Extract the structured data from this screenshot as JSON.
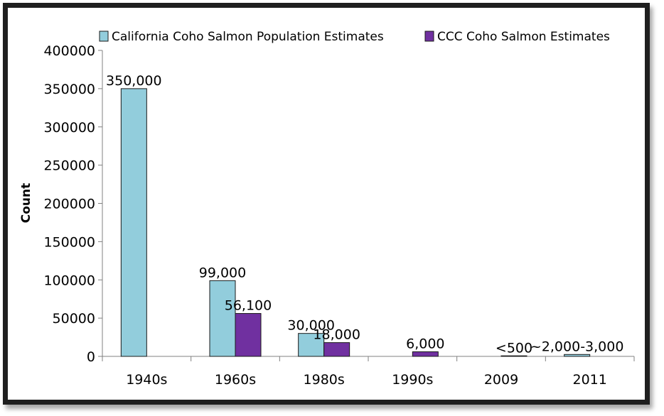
{
  "chart_data": {
    "type": "bar",
    "title": "",
    "xlabel": "",
    "ylabel": "Count",
    "ylim": [
      0,
      400000
    ],
    "yticks": [
      0,
      50000,
      100000,
      150000,
      200000,
      250000,
      300000,
      350000,
      400000
    ],
    "ytick_labels": [
      "0",
      "50000",
      "100000",
      "150000",
      "200000",
      "250000",
      "300000",
      "350000",
      "400000"
    ],
    "categories": [
      "1940s",
      "1960s",
      "1980s",
      "1990s",
      "2009",
      "2011"
    ],
    "legend_position": "top",
    "series": [
      {
        "name": "California Coho Salmon Population Estimates",
        "color": "#92CDDC",
        "values": [
          350000,
          99000,
          30000,
          null,
          null,
          2500
        ],
        "labels": [
          "350,000",
          "99,000",
          "30,000",
          "",
          "",
          "~2,000-3,000"
        ]
      },
      {
        "name": "CCC Coho Salmon Estimates",
        "color": "#7030A0",
        "values": [
          null,
          56100,
          18000,
          6000,
          500,
          null
        ],
        "labels": [
          "",
          "56,100",
          "18,000",
          "6,000",
          "<500",
          ""
        ]
      }
    ]
  }
}
